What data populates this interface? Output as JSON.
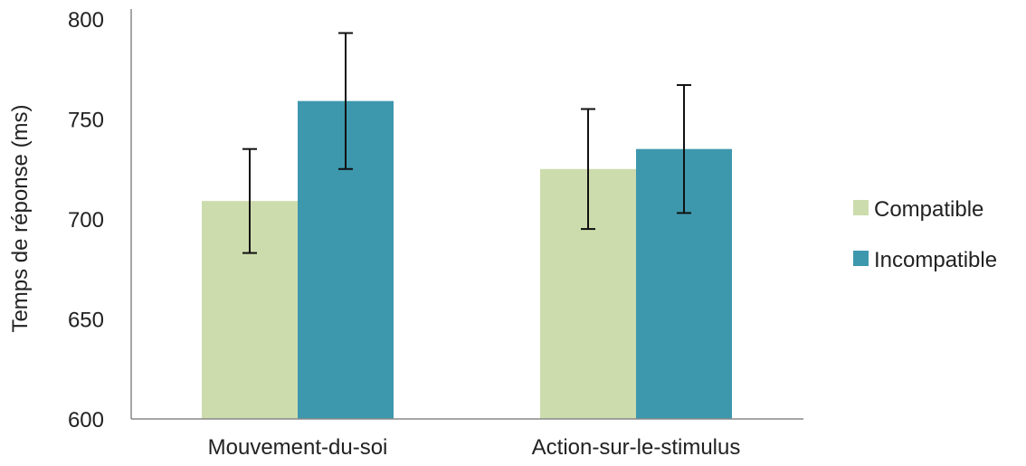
{
  "chart_data": {
    "type": "bar",
    "categories": [
      "Mouvement-du-soi",
      "Action-sur-le-stimulus"
    ],
    "series": [
      {
        "name": "Compatible",
        "color": "#cddcac",
        "values": [
          709,
          725
        ],
        "error": [
          26,
          30
        ]
      },
      {
        "name": "Incompatible",
        "color": "#3d98ad",
        "values": [
          759,
          735
        ],
        "error": [
          34,
          32
        ]
      }
    ],
    "ylabel": "Temps de réponse (ms)",
    "xlabel": "",
    "ylim": [
      600,
      805
    ],
    "yticks": [
      600,
      650,
      700,
      750,
      800
    ],
    "ytick_labels": [
      "600",
      "650",
      "700",
      "750",
      "800"
    ],
    "grid": false,
    "legend_position": "right"
  }
}
